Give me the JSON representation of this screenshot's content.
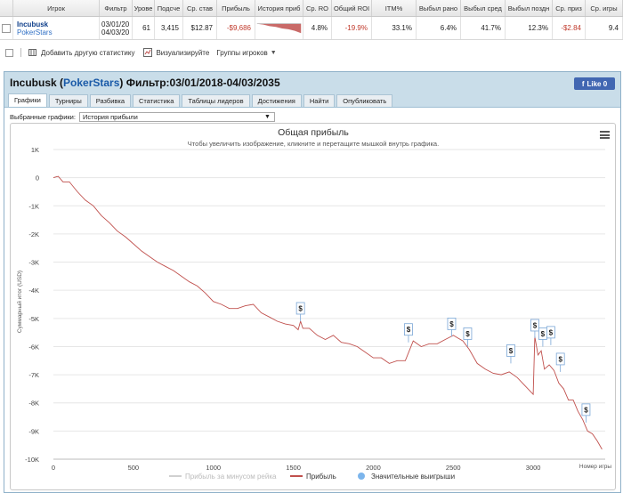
{
  "grid": {
    "headers": [
      "Игрок",
      "Фильтр",
      "Урове",
      "Подсче",
      "Ср. став",
      "Прибыль",
      "История приб",
      "Ср. RO",
      "Общий ROI",
      "ITM%",
      "Выбыл рано",
      "Выбыл сред",
      "Выбыл поздн",
      "Ср. приз",
      "Ср. игры"
    ],
    "row": {
      "player": "Incubusk",
      "site": "PokerStars",
      "filter_from": "03/01/20",
      "filter_to": "04/03/20",
      "level": "61",
      "count": "3,415",
      "avg_stake": "$12.87",
      "profit": "-$9,686",
      "avg_roi": "4.8%",
      "total_roi": "-19.9%",
      "itm": "33.1%",
      "early": "6.4%",
      "mid": "41.7%",
      "late": "12.3%",
      "avg_prize": "-$2.84",
      "avg_games": "9.4"
    }
  },
  "toolbar": {
    "add_stats": "Добавить другую статистику",
    "visualize": "Визуализируйте",
    "player_groups": "Группы игроков"
  },
  "panel": {
    "player": "Incubusk",
    "site": "PokerStars",
    "filter_label": "Фильтр:03/01/2018-04/03/2035",
    "like_label": "Like 0",
    "tabs": [
      "Графики",
      "Турниры",
      "Разбивка",
      "Статистика",
      "Таблицы лидеров",
      "Достижения",
      "Найти",
      "Опубликовать"
    ],
    "selected_charts_label": "Выбранные графики:",
    "selected_chart": "История прибыли"
  },
  "chart_data": {
    "type": "line",
    "title": "Общая прибыль",
    "subtitle": "Чтобы увеличить изображение, кликните и перетащите мышкой внутрь графика.",
    "xlabel": "Номер игры",
    "ylabel": "Суммарный итог (USD)",
    "xlim": [
      0,
      3450
    ],
    "ylim": [
      -10000,
      1000
    ],
    "x_ticks": [
      0,
      500,
      1000,
      1500,
      2000,
      2500,
      3000
    ],
    "y_ticks": [
      1000,
      0,
      -1000,
      -2000,
      -3000,
      -4000,
      -5000,
      -6000,
      -7000,
      -8000,
      -9000,
      -10000
    ],
    "y_tick_labels": [
      "1K",
      "0",
      "-1K",
      "-2K",
      "-3K",
      "-4K",
      "-5K",
      "-6K",
      "-7K",
      "-8K",
      "-9K",
      "-10K"
    ],
    "x_tick_labels": [
      "0",
      "500",
      "1000",
      "1500",
      "2000",
      "2500",
      "3000"
    ],
    "legend": [
      "Прибыль за минусом рейка",
      "Прибыль",
      "Значительные выигрыши"
    ],
    "legend_position": "bottom",
    "series": [
      {
        "name": "Прибыль",
        "color": "#c0504d",
        "x": [
          0,
          30,
          60,
          100,
          150,
          200,
          250,
          300,
          350,
          400,
          450,
          500,
          550,
          600,
          650,
          700,
          750,
          800,
          850,
          900,
          950,
          1000,
          1050,
          1100,
          1150,
          1200,
          1250,
          1300,
          1350,
          1400,
          1450,
          1500,
          1530,
          1545,
          1560,
          1600,
          1650,
          1700,
          1750,
          1800,
          1850,
          1900,
          1950,
          2000,
          2050,
          2100,
          2150,
          2200,
          2250,
          2300,
          2350,
          2400,
          2450,
          2500,
          2530,
          2560,
          2600,
          2650,
          2700,
          2750,
          2800,
          2850,
          2900,
          2950,
          3000,
          3010,
          3030,
          3050,
          3070,
          3100,
          3130,
          3160,
          3190,
          3220,
          3250,
          3280,
          3310,
          3340,
          3370,
          3400,
          3430
        ],
        "y": [
          0,
          50,
          -150,
          -150,
          -500,
          -800,
          -1000,
          -1350,
          -1600,
          -1900,
          -2100,
          -2350,
          -2600,
          -2800,
          -3000,
          -3150,
          -3300,
          -3500,
          -3700,
          -3850,
          -4100,
          -4400,
          -4500,
          -4650,
          -4650,
          -4550,
          -4500,
          -4800,
          -4950,
          -5100,
          -5200,
          -5250,
          -5400,
          -5100,
          -5350,
          -5350,
          -5600,
          -5750,
          -5600,
          -5850,
          -5900,
          -6000,
          -6200,
          -6400,
          -6400,
          -6600,
          -6500,
          -6500,
          -5800,
          -6000,
          -5900,
          -5900,
          -5750,
          -5600,
          -5700,
          -5800,
          -6100,
          -6600,
          -6800,
          -6950,
          -7000,
          -6900,
          -7100,
          -7400,
          -7700,
          -5650,
          -6300,
          -6150,
          -6800,
          -6650,
          -6850,
          -7300,
          -7500,
          -7900,
          -7900,
          -8300,
          -8600,
          -9000,
          -9100,
          -9350,
          -9650
        ]
      }
    ],
    "big_wins": [
      {
        "x": 1545,
        "y": -5100
      },
      {
        "x": 2220,
        "y": -5850
      },
      {
        "x": 2490,
        "y": -5650
      },
      {
        "x": 2590,
        "y": -6000
      },
      {
        "x": 2860,
        "y": -6600
      },
      {
        "x": 3010,
        "y": -5700
      },
      {
        "x": 3060,
        "y": -6000
      },
      {
        "x": 3110,
        "y": -5950
      },
      {
        "x": 3170,
        "y": -6900
      },
      {
        "x": 3330,
        "y": -8700
      }
    ],
    "big_win_label": "$"
  }
}
